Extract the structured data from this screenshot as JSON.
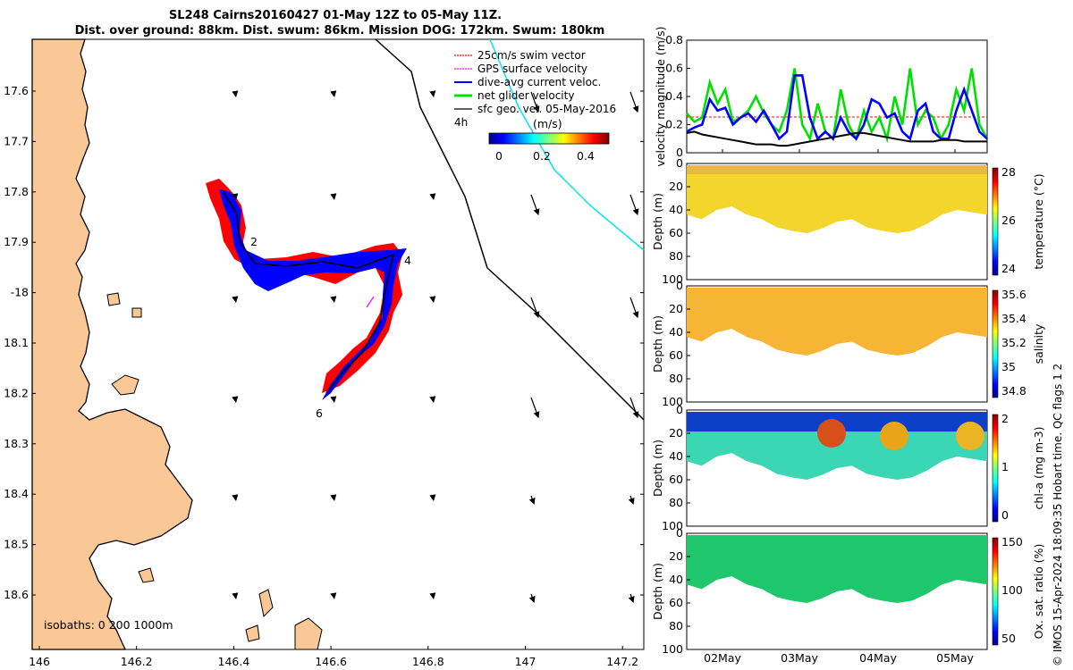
{
  "header": {
    "title_line1": "SL248 Cairns20160427 01-May 12Z to 05-May 11Z.",
    "title_line2": "Dist. over ground: 88km. Dist. swum: 86km. Mission DOG: 172km. Swum: 180km"
  },
  "map": {
    "lon_ticks": [
      "146",
      "146.2",
      "146.4",
      "146.6",
      "146.8",
      "147",
      "147.2"
    ],
    "lat_ticks": [
      "17.6",
      "17.7",
      "17.8",
      "17.9",
      "-18",
      "18.1",
      "18.2",
      "18.3",
      "18.4",
      "18.5",
      "18.6"
    ],
    "legend": [
      {
        "label": "25cm/s swim vector",
        "color": "#ff0000"
      },
      {
        "label": "GPS surface velocity",
        "color": "#ff00ff"
      },
      {
        "label": "dive-avg current veloc.",
        "color": "#0000ff"
      },
      {
        "label": "net glider velocity",
        "color": "#00e000"
      },
      {
        "label": "sfc geo. vel. 05-May-2016",
        "color": "#000000"
      }
    ],
    "legend_extra": "4h",
    "colorbar_unit": "(m/s)",
    "colorbar_ticks": [
      "0",
      "0.2",
      "0.4"
    ],
    "track_labels": [
      "2",
      "4",
      "6"
    ],
    "isobaths_label": "isobaths: 0   200  1000m",
    "colors": {
      "land": "#f9c896",
      "track_blue": "#0000ff",
      "track_red": "#ff0000",
      "geo_line": "#00e5ee"
    }
  },
  "chart_data": [
    {
      "type": "line",
      "title": "",
      "ylabel": "velocity magnitude (m/s)",
      "ylim": [
        0,
        0.8
      ],
      "y_ticks": [
        "0",
        "0.2",
        "0.4",
        "0.6",
        "0.8"
      ],
      "x_ticks": [
        "02May",
        "03May",
        "04May",
        "05May"
      ],
      "series": [
        {
          "color": "#00e000",
          "values": [
            0.28,
            0.22,
            0.25,
            0.5,
            0.35,
            0.45,
            0.22,
            0.25,
            0.3,
            0.4,
            0.28,
            0.2,
            0.15,
            0.3,
            0.6,
            0.2,
            0.1,
            0.35,
            0.15,
            0.1,
            0.45,
            0.2,
            0.1,
            0.3,
            0.15,
            0.25,
            0.1,
            0.4,
            0.2,
            0.6,
            0.2,
            0.3,
            0.25,
            0.1,
            0.2,
            0.45,
            0.3,
            0.6,
            0.2,
            0.1
          ]
        },
        {
          "color": "#0000ff",
          "values": [
            0.15,
            0.18,
            0.2,
            0.38,
            0.3,
            0.32,
            0.2,
            0.25,
            0.28,
            0.22,
            0.3,
            0.2,
            0.1,
            0.15,
            0.55,
            0.55,
            0.25,
            0.1,
            0.15,
            0.1,
            0.25,
            0.15,
            0.1,
            0.2,
            0.38,
            0.35,
            0.25,
            0.28,
            0.15,
            0.1,
            0.3,
            0.35,
            0.15,
            0.1,
            0.1,
            0.3,
            0.45,
            0.3,
            0.15,
            0.1
          ]
        },
        {
          "color": "#000000",
          "values": [
            0.14,
            0.15,
            0.13,
            0.12,
            0.11,
            0.1,
            0.09,
            0.08,
            0.07,
            0.06,
            0.06,
            0.06,
            0.05,
            0.05,
            0.06,
            0.07,
            0.08,
            0.09,
            0.1,
            0.11,
            0.12,
            0.13,
            0.14,
            0.14,
            0.13,
            0.12,
            0.11,
            0.1,
            0.09,
            0.08,
            0.08,
            0.08,
            0.08,
            0.09,
            0.09,
            0.09,
            0.08,
            0.08,
            0.08,
            0.08
          ]
        }
      ]
    },
    {
      "type": "heatmap",
      "ylabel": "Depth (m)",
      "cbar_label": "temperature (°C)",
      "cbar_ticks": [
        "24",
        "26",
        "28"
      ],
      "y_ticks": [
        "0",
        "20",
        "40",
        "60",
        "80",
        "100"
      ]
    },
    {
      "type": "heatmap",
      "ylabel": "Depth (m)",
      "cbar_label": "salinity",
      "cbar_ticks": [
        "34.8",
        "35",
        "35.2",
        "35.4",
        "35.6"
      ],
      "y_ticks": [
        "0",
        "20",
        "40",
        "60",
        "80",
        "100"
      ]
    },
    {
      "type": "heatmap",
      "ylabel": "Depth (m)",
      "cbar_label": "chl-a  (mg m-3)",
      "cbar_ticks": [
        "0",
        "1",
        "2"
      ],
      "y_ticks": [
        "0",
        "20",
        "40",
        "60",
        "80",
        "100"
      ]
    },
    {
      "type": "heatmap",
      "ylabel": "Depth (m)",
      "cbar_label": "Ox. sat. ratio (%)",
      "cbar_ticks": [
        "50",
        "100",
        "150"
      ],
      "y_ticks": [
        "0",
        "20",
        "40",
        "60",
        "80",
        "100"
      ],
      "x_ticks": [
        "02May",
        "03May",
        "04May",
        "05May"
      ]
    }
  ],
  "footer": {
    "credit": "© IMOS 15-Apr-2024 18:09:35 Hobart time. QC flags 1  2"
  }
}
